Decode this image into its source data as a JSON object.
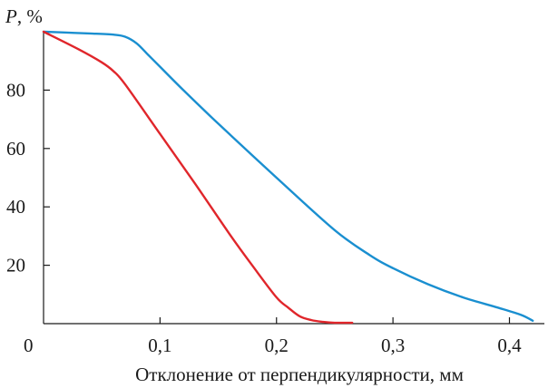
{
  "chart_data": {
    "type": "line",
    "ylabel_var": "P",
    "ylabel_unit": ", %",
    "xlabel": "Отклонение от перпендикулярности, мм",
    "origin_label": "0",
    "xlim": [
      0,
      0.43
    ],
    "ylim": [
      0,
      100
    ],
    "x_ticks": [
      0.1,
      0.2,
      0.3,
      0.4
    ],
    "x_tick_labels": [
      "0,1",
      "0,2",
      "0,3",
      "0,4"
    ],
    "y_ticks": [
      20,
      40,
      60,
      80
    ],
    "y_tick_labels": [
      "20",
      "40",
      "60",
      "80"
    ],
    "grid": false,
    "legend": "none",
    "series": [
      {
        "color": "#1a8fd0",
        "x": [
          0,
          0.02,
          0.04,
          0.06,
          0.07,
          0.08,
          0.09,
          0.1,
          0.12,
          0.15,
          0.2,
          0.25,
          0.28,
          0.3,
          0.33,
          0.36,
          0.39,
          0.41,
          0.42
        ],
        "y": [
          100,
          99.7,
          99.4,
          99,
          98.3,
          96,
          92,
          88,
          80,
          68.5,
          50,
          32,
          23.5,
          19,
          13.5,
          9,
          5.5,
          3,
          1
        ]
      },
      {
        "color": "#e0262b",
        "x": [
          0,
          0.03,
          0.05,
          0.06,
          0.07,
          0.1,
          0.13,
          0.16,
          0.18,
          0.2,
          0.21,
          0.22,
          0.23,
          0.24,
          0.25,
          0.265
        ],
        "y": [
          100,
          94,
          89.5,
          86.5,
          82,
          65,
          48,
          30.5,
          19.5,
          9,
          5.5,
          2.5,
          1.2,
          0.6,
          0.3,
          0.3
        ]
      }
    ]
  }
}
